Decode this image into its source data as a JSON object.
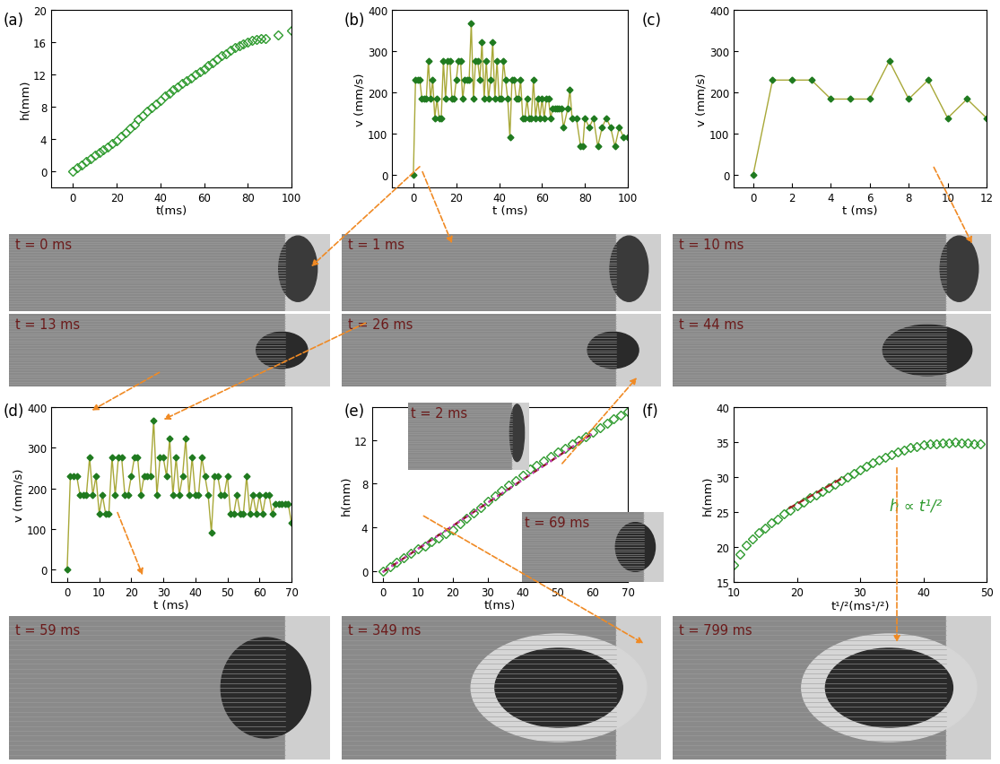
{
  "chart_data": [
    {
      "type": "scatter",
      "title": "(a)",
      "x_label": "t(ms)",
      "y_label": "h(mm)",
      "xlim": [
        -10,
        100
      ],
      "xticks": [
        0,
        20,
        40,
        60,
        80,
        100
      ],
      "ylim": [
        -2,
        20
      ],
      "yticks": [
        0,
        4,
        8,
        12,
        16,
        20
      ],
      "series": [
        {
          "color": "#2e9a2e",
          "marker": "diamond_open",
          "line_style": "none",
          "x": [
            0,
            2,
            4,
            6,
            8,
            10,
            12,
            14,
            16,
            18,
            20,
            22,
            24,
            26,
            28,
            30,
            32,
            34,
            36,
            38,
            40,
            42,
            44,
            46,
            48,
            50,
            52,
            54,
            56,
            58,
            60,
            62,
            64,
            66,
            68,
            70,
            72,
            74,
            76,
            78,
            80,
            82,
            84,
            86,
            88,
            94,
            100
          ],
          "values": [
            0,
            0.4,
            0.8,
            1.2,
            1.6,
            2.0,
            2.3,
            2.7,
            3.0,
            3.4,
            3.8,
            4.3,
            4.8,
            5.3,
            5.8,
            6.4,
            6.9,
            7.4,
            7.9,
            8.3,
            8.8,
            9.3,
            9.7,
            10.1,
            10.5,
            10.9,
            11.2,
            11.6,
            12.0,
            12.3,
            12.7,
            13.1,
            13.5,
            13.9,
            14.3,
            14.6,
            15.0,
            15.3,
            15.6,
            15.8,
            16.0,
            16.2,
            16.3,
            16.4,
            16.5,
            16.9,
            17.4
          ]
        }
      ]
    },
    {
      "type": "line",
      "title": "(b)",
      "x_label": "t (ms)",
      "y_label": "v (mm/s)",
      "xlim": [
        -10,
        100
      ],
      "xticks": [
        0,
        20,
        40,
        60,
        80,
        100
      ],
      "ylim": [
        -30,
        400
      ],
      "yticks": [
        0,
        100,
        200,
        300,
        400
      ],
      "series": [
        {
          "color": "#1f7a1f",
          "marker": "diamond",
          "line_style": "solid",
          "x": [
            0,
            1,
            2,
            3,
            4,
            5,
            6,
            7,
            8,
            9,
            10,
            11,
            12,
            13,
            14,
            15,
            16,
            17,
            18,
            19,
            20,
            21,
            22,
            23,
            24,
            25,
            26,
            27,
            28,
            29,
            30,
            31,
            32,
            33,
            34,
            35,
            36,
            37,
            38,
            39,
            40,
            41,
            42,
            43,
            44,
            45,
            46,
            47,
            48,
            49,
            50,
            51,
            52,
            53,
            54,
            55,
            56,
            57,
            58,
            59,
            60,
            61,
            62,
            63,
            64,
            65,
            66,
            67,
            68,
            69,
            70,
            72,
            73,
            74,
            76,
            78,
            79,
            80,
            82,
            84,
            86,
            88,
            90,
            92,
            94,
            96,
            98,
            100
          ],
          "values": [
            0,
            230,
            230,
            230,
            184,
            184,
            184,
            276,
            184,
            230,
            138,
            184,
            138,
            138,
            276,
            184,
            276,
            276,
            184,
            184,
            230,
            276,
            276,
            184,
            230,
            230,
            230,
            368,
            184,
            276,
            276,
            230,
            322,
            184,
            276,
            184,
            230,
            322,
            184,
            276,
            184,
            184,
            276,
            230,
            184,
            92,
            230,
            230,
            184,
            184,
            230,
            138,
            138,
            184,
            138,
            138,
            230,
            138,
            184,
            138,
            184,
            138,
            184,
            184,
            138,
            161,
            161,
            161,
            161,
            161,
            115,
            161,
            207,
            138,
            138,
            69,
            69,
            138,
            115,
            138,
            69,
            115,
            138,
            115,
            69,
            115,
            92,
            92
          ]
        }
      ]
    },
    {
      "type": "line",
      "title": "(c)",
      "x_label": "t (ms)",
      "y_label": "v (mm/s)",
      "xlim": [
        -1,
        12
      ],
      "xticks": [
        0,
        2,
        4,
        6,
        8,
        10,
        12
      ],
      "ylim": [
        -30,
        400
      ],
      "yticks": [
        0,
        100,
        200,
        300,
        400
      ],
      "series": [
        {
          "color": "#1f7a1f",
          "marker": "diamond",
          "line_style": "solid",
          "x": [
            0,
            1,
            2,
            3,
            4,
            5,
            6,
            7,
            8,
            9,
            10,
            11,
            12
          ],
          "values": [
            0,
            230,
            230,
            230,
            184,
            184,
            184,
            276,
            184,
            230,
            138,
            184,
            138
          ]
        }
      ]
    },
    {
      "type": "line",
      "title": "(d)",
      "x_label": "t (ms)",
      "y_label": "v (mm/s)",
      "xlim": [
        -5,
        70
      ],
      "xticks": [
        0,
        10,
        20,
        30,
        40,
        50,
        60,
        70
      ],
      "ylim": [
        -30,
        400
      ],
      "yticks": [
        0,
        100,
        200,
        300,
        400
      ],
      "series": [
        {
          "color": "#1f7a1f",
          "marker": "diamond",
          "line_style": "solid",
          "x": [
            0,
            1,
            2,
            3,
            4,
            5,
            6,
            7,
            8,
            9,
            10,
            11,
            12,
            13,
            14,
            15,
            16,
            17,
            18,
            19,
            20,
            21,
            22,
            23,
            24,
            25,
            26,
            27,
            28,
            29,
            30,
            31,
            32,
            33,
            34,
            35,
            36,
            37,
            38,
            39,
            40,
            41,
            42,
            43,
            44,
            45,
            46,
            47,
            48,
            49,
            50,
            51,
            52,
            53,
            54,
            55,
            56,
            57,
            58,
            59,
            60,
            61,
            62,
            63,
            64,
            65,
            66,
            67,
            68,
            69,
            70
          ],
          "values": [
            0,
            230,
            230,
            230,
            184,
            184,
            184,
            276,
            184,
            230,
            138,
            184,
            138,
            138,
            276,
            184,
            276,
            276,
            184,
            184,
            230,
            276,
            276,
            184,
            230,
            230,
            230,
            368,
            184,
            276,
            276,
            230,
            322,
            184,
            276,
            184,
            230,
            322,
            184,
            276,
            184,
            184,
            276,
            230,
            184,
            92,
            230,
            230,
            184,
            184,
            230,
            138,
            138,
            184,
            138,
            138,
            230,
            138,
            184,
            138,
            184,
            138,
            184,
            184,
            138,
            161,
            161,
            161,
            161,
            161,
            115
          ]
        }
      ]
    },
    {
      "type": "scatter",
      "title": "(e)",
      "x_label": "t(ms)",
      "y_label": "h(mm)",
      "xlim": [
        -3,
        70
      ],
      "xticks": [
        0,
        10,
        20,
        30,
        40,
        50,
        60,
        70
      ],
      "ylim": [
        -1,
        15
      ],
      "yticks": [
        0,
        4,
        8,
        12
      ],
      "insets": [
        "t = 2 ms",
        "t = 69 ms"
      ],
      "series": [
        {
          "color": "#2e9a2e",
          "marker": "diamond_open",
          "line_style": "none",
          "x": [
            0,
            2,
            4,
            6,
            8,
            10,
            12,
            14,
            16,
            18,
            20,
            22,
            24,
            26,
            28,
            30,
            32,
            34,
            36,
            38,
            40,
            42,
            44,
            46,
            48,
            50,
            52,
            54,
            56,
            58,
            60,
            62,
            64,
            66,
            68,
            70
          ],
          "values": [
            0,
            0.4,
            0.8,
            1.2,
            1.6,
            2.0,
            2.3,
            2.7,
            3.0,
            3.4,
            3.8,
            4.3,
            4.8,
            5.3,
            5.8,
            6.4,
            6.9,
            7.4,
            7.9,
            8.3,
            8.8,
            9.3,
            9.7,
            10.1,
            10.5,
            10.9,
            11.2,
            11.6,
            12.0,
            12.3,
            12.7,
            13.1,
            13.5,
            13.9,
            14.3,
            14.6
          ]
        },
        {
          "color": "#8b1a1a",
          "marker": "none",
          "line_style": "dashed",
          "x": [
            0,
            60
          ],
          "values": [
            -0.1,
            12.6
          ]
        },
        {
          "color": "#cc44cc",
          "marker": "none",
          "line_style": "dotted",
          "x": [
            0,
            60
          ],
          "values": [
            -0.1,
            12.6
          ]
        }
      ]
    },
    {
      "type": "scatter",
      "title": "(f)",
      "x_label": "t¹/²(ms¹/²)",
      "y_label": "h(mm)",
      "xlim": [
        10,
        50
      ],
      "xticks": [
        10,
        20,
        30,
        40,
        50
      ],
      "ylim": [
        15,
        40
      ],
      "yticks": [
        15,
        20,
        25,
        30,
        35,
        40
      ],
      "annotation": "h ∝ t¹/²",
      "series": [
        {
          "color": "#2e9a2e",
          "marker": "diamond_open",
          "line_style": "none",
          "x": [
            10,
            11,
            12,
            13,
            14,
            15,
            16,
            17,
            18,
            19,
            20,
            21,
            22,
            23,
            24,
            25,
            26,
            27,
            28,
            29,
            30,
            31,
            32,
            33,
            34,
            35,
            36,
            37,
            38,
            39,
            40,
            41,
            42,
            43,
            44,
            45,
            46,
            47,
            48,
            49
          ],
          "values": [
            17.5,
            19,
            20.2,
            21.1,
            22,
            22.7,
            23.4,
            24,
            24.7,
            25.3,
            25.9,
            26.4,
            27,
            27.5,
            28,
            28.5,
            29,
            29.5,
            30,
            30.5,
            31,
            31.5,
            32,
            32.4,
            32.8,
            33.2,
            33.6,
            33.9,
            34.2,
            34.4,
            34.6,
            34.7,
            34.8,
            34.9,
            34.9,
            35,
            34.9,
            34.9,
            34.8,
            34.8
          ]
        },
        {
          "color": "#a02020",
          "marker": "none",
          "line_style": "dashed",
          "x": [
            18.7,
            27.5
          ],
          "values": [
            25.5,
            30.0
          ]
        }
      ]
    }
  ],
  "images": [
    "t = 0 ms",
    "t = 1 ms",
    "t = 10 ms",
    "t = 13 ms",
    "t = 26 ms",
    "t = 44 ms",
    "t = 59 ms",
    "t = 349 ms",
    "t = 799 ms"
  ]
}
